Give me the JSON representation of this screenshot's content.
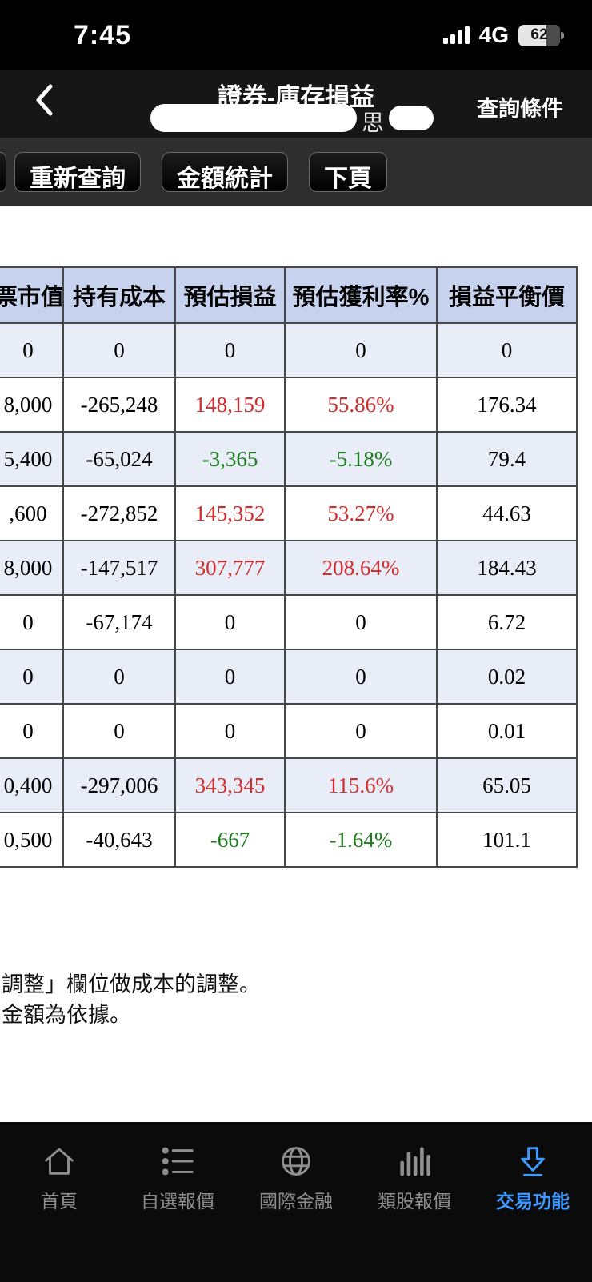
{
  "status_bar": {
    "time": "7:45",
    "network": "4G",
    "battery_percent": "62"
  },
  "nav": {
    "title": "證券-庫存損益",
    "right_button": "查詢條件",
    "masked_visible_char": "思"
  },
  "toolbar": {
    "requery": "重新查詢",
    "amount_stats": "金額統計",
    "next_page": "下頁"
  },
  "table": {
    "headers": [
      "票市值",
      "持有成本",
      "預估損益",
      "預估獲利率%",
      "損益平衡價"
    ],
    "rows": [
      {
        "cells": [
          "0",
          "0",
          "0",
          "0",
          "0"
        ],
        "pl_color": "black"
      },
      {
        "cells": [
          "8,000",
          "-265,248",
          "148,159",
          "55.86%",
          "176.34"
        ],
        "pl_color": "red"
      },
      {
        "cells": [
          "5,400",
          "-65,024",
          "-3,365",
          "-5.18%",
          "79.4"
        ],
        "pl_color": "green"
      },
      {
        "cells": [
          ",600",
          "-272,852",
          "145,352",
          "53.27%",
          "44.63"
        ],
        "pl_color": "red"
      },
      {
        "cells": [
          "8,000",
          "-147,517",
          "307,777",
          "208.64%",
          "184.43"
        ],
        "pl_color": "red"
      },
      {
        "cells": [
          "0",
          "-67,174",
          "0",
          "0",
          "6.72"
        ],
        "pl_color": "black"
      },
      {
        "cells": [
          "0",
          "0",
          "0",
          "0",
          "0.02"
        ],
        "pl_color": "black"
      },
      {
        "cells": [
          "0",
          "0",
          "0",
          "0",
          "0.01"
        ],
        "pl_color": "black"
      },
      {
        "cells": [
          "0,400",
          "-297,006",
          "343,345",
          "115.6%",
          "65.05"
        ],
        "pl_color": "red"
      },
      {
        "cells": [
          "0,500",
          "-40,643",
          "-667",
          "-1.64%",
          "101.1"
        ],
        "pl_color": "green"
      }
    ]
  },
  "notes": {
    "line1": "調整」欄位做成本的調整。",
    "line2": "金額為依據。"
  },
  "tabbar": {
    "items": [
      {
        "label": "首頁"
      },
      {
        "label": "自選報價"
      },
      {
        "label": "國際金融"
      },
      {
        "label": "類股報價"
      },
      {
        "label": "交易功能"
      }
    ],
    "active": "交易功能"
  },
  "colors": {
    "gain_red": "#d22c2c",
    "loss_green": "#1e7e1e",
    "accent_blue": "#3d9bff",
    "table_header_bg": "#c6d2ee",
    "table_alt_row_bg": "#e9edf8"
  }
}
